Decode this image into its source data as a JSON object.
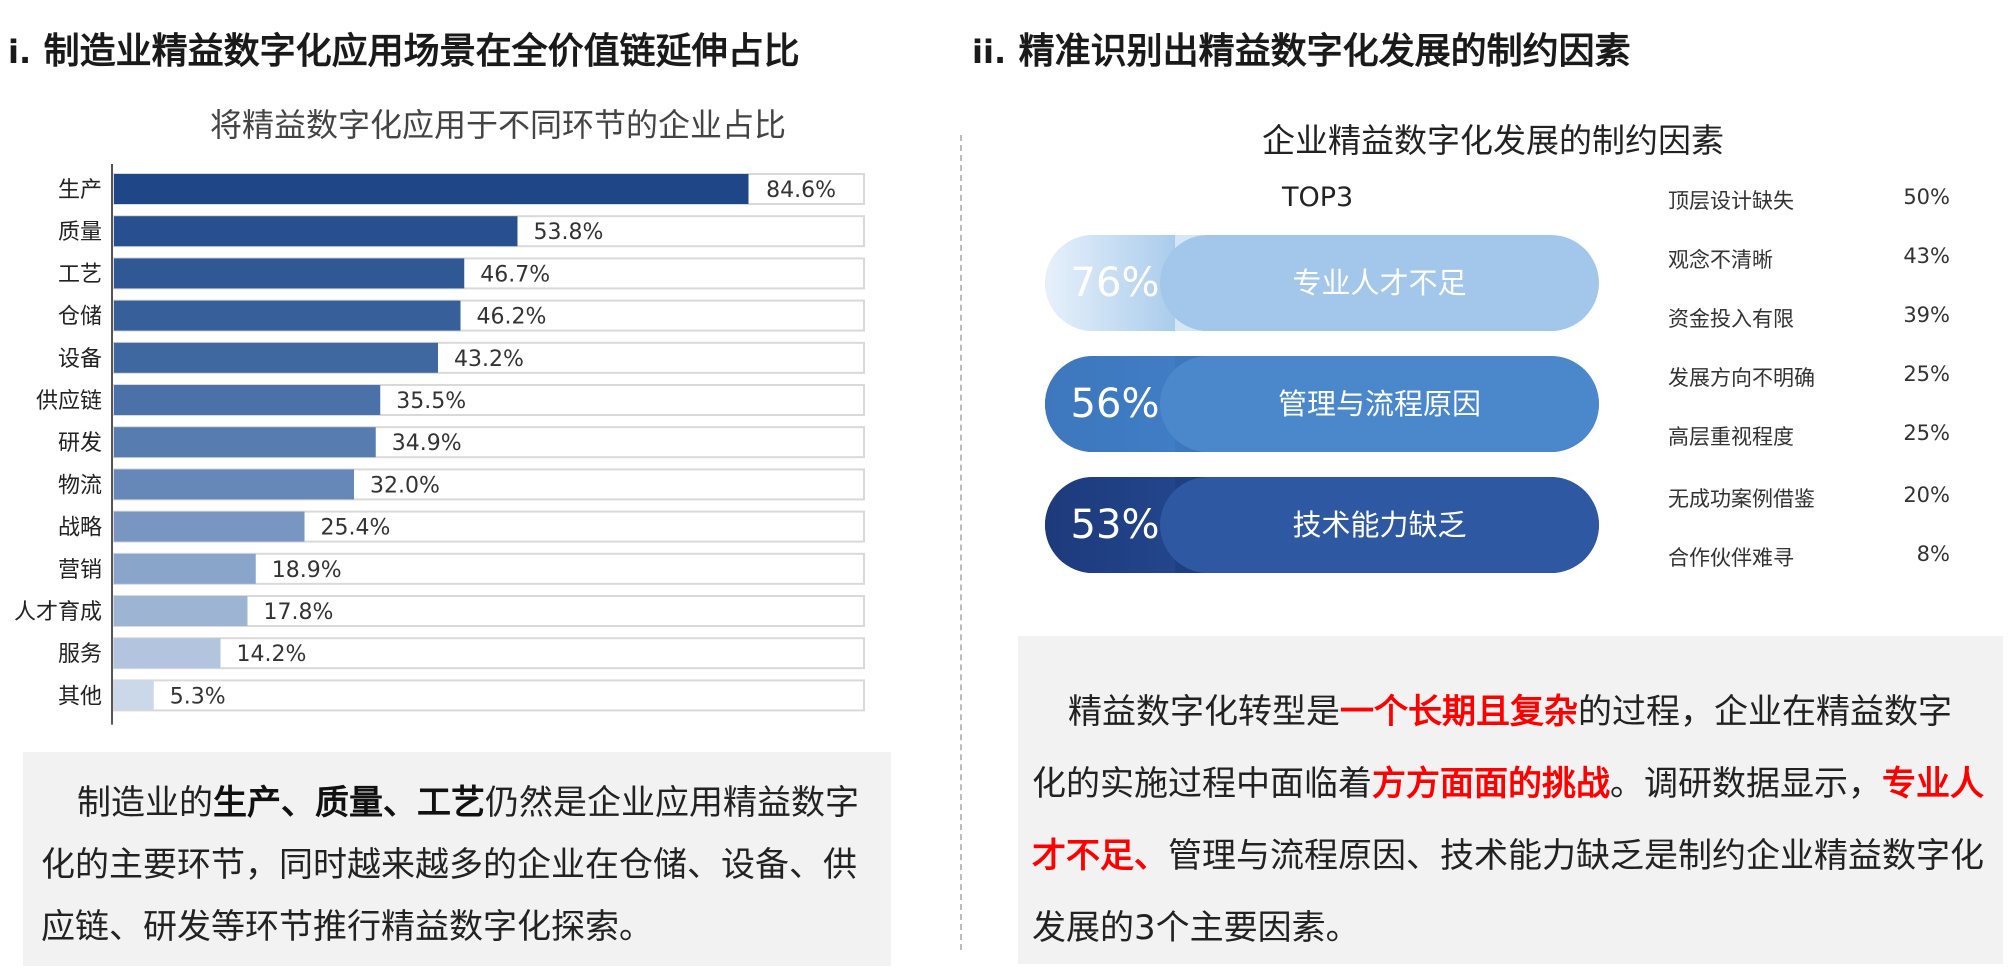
{
  "left_section": {
    "number": "i.",
    "title": "制造业精益数字化应用场景在全价值链延伸占比"
  },
  "right_section": {
    "number": "ii.",
    "title": "精准识别出精益数字化发展的制约因素"
  },
  "chart_data": [
    {
      "type": "bar",
      "orientation": "horizontal",
      "title": "将精益数字化应用于不同环节的企业占比",
      "categories": [
        "生产",
        "质量",
        "工艺",
        "仓储",
        "设备",
        "供应链",
        "研发",
        "物流",
        "战略",
        "营销",
        "人才育成",
        "服务",
        "其他"
      ],
      "values": [
        84.6,
        53.8,
        46.7,
        46.2,
        43.2,
        35.5,
        34.9,
        32.0,
        25.4,
        18.9,
        17.8,
        14.2,
        5.3
      ],
      "value_labels": [
        "84.6%",
        "53.8%",
        "46.7%",
        "46.2%",
        "43.2%",
        "35.5%",
        "34.9%",
        "32.0%",
        "25.4%",
        "18.9%",
        "17.8%",
        "14.2%",
        "5.3%"
      ],
      "xlim": [
        0,
        100
      ],
      "unit": "%",
      "bar_colors": [
        "#1f4788",
        "#284f8f",
        "#2f5895",
        "#37609b",
        "#3f68a1",
        "#4a72a9",
        "#577db0",
        "#6688b8",
        "#7896c1",
        "#8aa5ca",
        "#9db4d3",
        "#b3c5de",
        "#cbd8ea"
      ]
    },
    {
      "type": "table",
      "title": "企业精益数字化发展的制约因素",
      "top_label": "TOP3",
      "top3": [
        {
          "value": "76%",
          "label": "专业人才不足"
        },
        {
          "value": "56%",
          "label": "管理与流程原因"
        },
        {
          "value": "53%",
          "label": "技术能力缺乏"
        }
      ],
      "factors": [
        {
          "name": "顶层设计缺失",
          "value": "50%"
        },
        {
          "name": "观念不清晰",
          "value": "43%"
        },
        {
          "name": "资金投入有限",
          "value": "39%"
        },
        {
          "name": "发展方向不明确",
          "value": "25%"
        },
        {
          "name": "高层重视程度",
          "value": "25%"
        },
        {
          "name": "无成功案例借鉴",
          "value": "20%"
        },
        {
          "name": "合作伙伴难寻",
          "value": "8%"
        }
      ]
    }
  ],
  "left_text": {
    "p1": "制造业的",
    "bold1": "生产、质量、工艺",
    "p2": "仍然是企业应用精益数字化的主要环节，同时越来越多的企业在仓储、设备、供应链、研发等环节推行精益数字化探索。"
  },
  "right_text": {
    "p1": "精益数字化转型是",
    "red1": "一个长期且复杂",
    "p2": "的过程，企业在精益数字化的实施过程中面临着",
    "red2": "方方面面的挑战",
    "p3": "。调研数据显示，",
    "red3": "专业人才不足、",
    "p4": "管理与流程原因、技术能力缺乏是制约企业精益数字化发展的3个主要因素。"
  }
}
